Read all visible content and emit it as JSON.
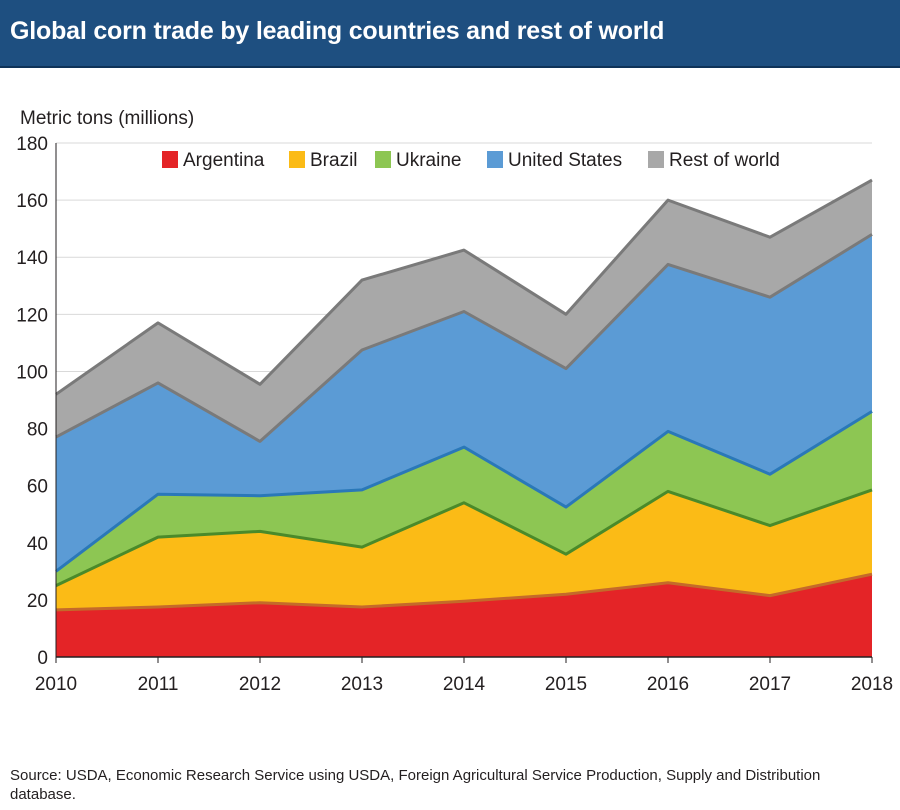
{
  "title": "Global corn trade by leading countries and rest of world",
  "source": "Source: USDA, Economic Research Service using USDA, Foreign Agricultural Service Production, Supply and Distribution database.",
  "chart_data": {
    "type": "area",
    "stacked": true,
    "ylabel": "Metric tons (millions)",
    "xlabel": "",
    "ylim": [
      0,
      180
    ],
    "yticks": [
      0,
      20,
      40,
      60,
      80,
      100,
      120,
      140,
      160,
      180
    ],
    "categories": [
      "2010",
      "2011",
      "2012",
      "2013",
      "2014",
      "2015",
      "2016",
      "2017",
      "2018"
    ],
    "grid": true,
    "legend_position": "top",
    "series": [
      {
        "name": "Argentina",
        "color": "#e42427",
        "edge": "#c46a2a",
        "values": [
          16.5,
          17.5,
          19,
          17.5,
          19.5,
          22,
          26,
          21.5,
          29
        ]
      },
      {
        "name": "Brazil",
        "color": "#fbbb16",
        "edge": "#4a8a2a",
        "values": [
          8.5,
          24.5,
          25,
          21,
          34.5,
          14,
          32,
          24.5,
          29.5
        ]
      },
      {
        "name": "Ukraine",
        "color": "#8dc653",
        "edge": "#2a78b8",
        "values": [
          5,
          15,
          12.5,
          20,
          19.5,
          16.5,
          21,
          18,
          27.5
        ]
      },
      {
        "name": "United States",
        "color": "#5b9bd5",
        "edge": "#7a7a7a",
        "values": [
          47,
          39,
          19,
          49,
          47.5,
          48.5,
          58.5,
          62,
          62
        ]
      },
      {
        "name": "Rest of world",
        "color": "#a8a8a8",
        "edge": "#7a7a7a",
        "values": [
          15,
          21,
          20,
          24.5,
          21.5,
          19,
          22.5,
          21,
          19
        ]
      }
    ]
  }
}
